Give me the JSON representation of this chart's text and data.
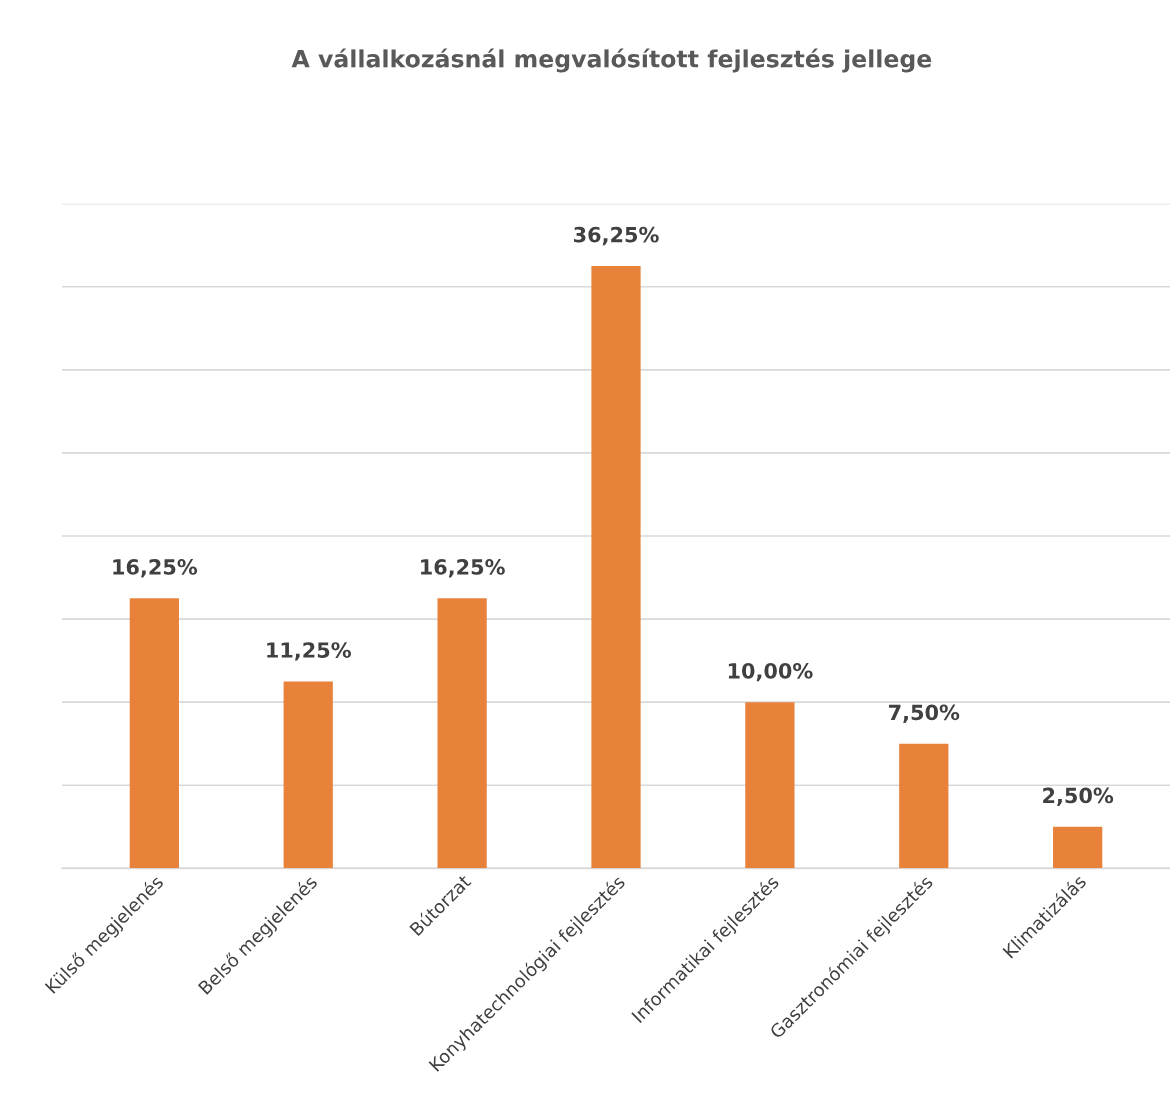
{
  "chart_data": {
    "type": "bar",
    "title": "A vállalkozásnál megvalósított fejlesztés jellege",
    "categories": [
      "Külső megjelenés",
      "Belső megjelenés",
      "Bútorzat",
      "Konyhatechnológiai fejlesztés",
      "Informatikai fejlesztés",
      "Gasztronómiai fejlesztés",
      "Klimatizálás"
    ],
    "values": [
      16.25,
      11.25,
      16.25,
      36.25,
      10.0,
      7.5,
      2.5
    ],
    "value_labels": [
      "16,25%",
      "11,25%",
      "16,25%",
      "36,25%",
      "10,00%",
      "7,50%",
      "2,50%"
    ],
    "color": "#e8823a",
    "ylim": [
      0,
      40
    ],
    "yticks": [
      {
        "value": 0,
        "label": null
      },
      {
        "value": 5,
        "label": null
      },
      {
        "value": 10,
        "label": null
      },
      {
        "value": 15,
        "label": null
      },
      {
        "value": 20,
        "label": null
      },
      {
        "value": 25,
        "label": null
      },
      {
        "value": 30,
        "label": null
      },
      {
        "value": 35,
        "label": null
      },
      {
        "value": 40,
        "label": null
      }
    ],
    "grid": "y",
    "tick_labels": "x"
  }
}
